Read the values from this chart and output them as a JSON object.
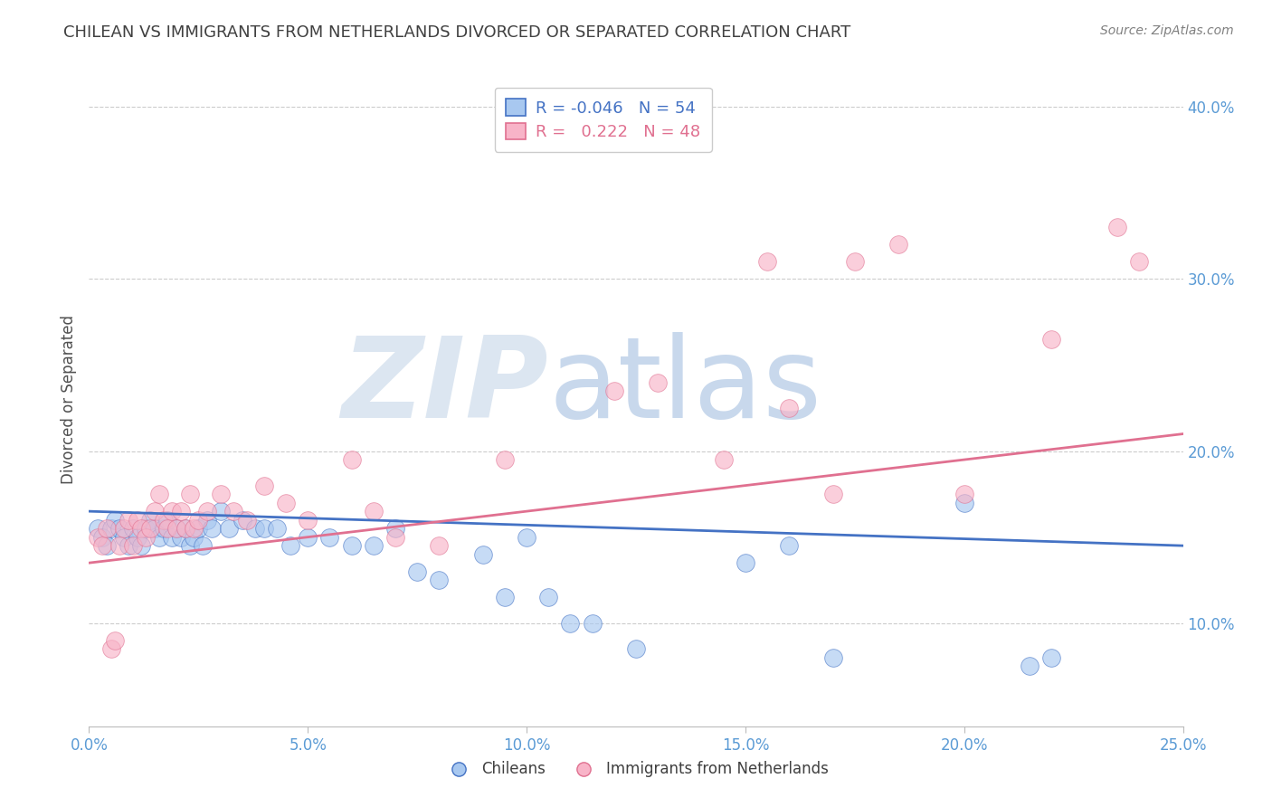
{
  "title": "CHILEAN VS IMMIGRANTS FROM NETHERLANDS DIVORCED OR SEPARATED CORRELATION CHART",
  "source_text": "Source: ZipAtlas.com",
  "ylabel": "Divorced or Separated",
  "xlim": [
    0.0,
    0.25
  ],
  "ylim": [
    0.04,
    0.42
  ],
  "xtick_labels": [
    "0.0%",
    "5.0%",
    "10.0%",
    "15.0%",
    "20.0%",
    "25.0%"
  ],
  "xtick_vals": [
    0.0,
    0.05,
    0.1,
    0.15,
    0.2,
    0.25
  ],
  "ytick_labels": [
    "10.0%",
    "20.0%",
    "30.0%",
    "40.0%"
  ],
  "ytick_vals": [
    0.1,
    0.2,
    0.3,
    0.4
  ],
  "blue_R": -0.046,
  "blue_N": 54,
  "pink_R": 0.222,
  "pink_N": 48,
  "blue_color": "#A8C8F0",
  "pink_color": "#F8B4C8",
  "blue_line_color": "#4472C4",
  "pink_line_color": "#E07090",
  "title_color": "#404040",
  "source_color": "#808080",
  "axis_label_color": "#5B9BD5",
  "watermark_color": "#DCE6F1",
  "watermark_text": "ZIPatlas",
  "background_color": "#FFFFFF",
  "blue_x": [
    0.002,
    0.003,
    0.004,
    0.005,
    0.006,
    0.007,
    0.008,
    0.009,
    0.01,
    0.011,
    0.012,
    0.013,
    0.014,
    0.015,
    0.016,
    0.017,
    0.018,
    0.019,
    0.02,
    0.021,
    0.022,
    0.023,
    0.024,
    0.025,
    0.026,
    0.027,
    0.028,
    0.03,
    0.032,
    0.035,
    0.038,
    0.04,
    0.043,
    0.046,
    0.05,
    0.055,
    0.06,
    0.065,
    0.07,
    0.075,
    0.08,
    0.09,
    0.095,
    0.1,
    0.105,
    0.11,
    0.115,
    0.125,
    0.15,
    0.16,
    0.17,
    0.2,
    0.215,
    0.22
  ],
  "blue_y": [
    0.155,
    0.15,
    0.145,
    0.155,
    0.16,
    0.155,
    0.15,
    0.145,
    0.155,
    0.15,
    0.145,
    0.155,
    0.16,
    0.155,
    0.15,
    0.155,
    0.16,
    0.15,
    0.155,
    0.15,
    0.155,
    0.145,
    0.15,
    0.155,
    0.145,
    0.16,
    0.155,
    0.165,
    0.155,
    0.16,
    0.155,
    0.155,
    0.155,
    0.145,
    0.15,
    0.15,
    0.145,
    0.145,
    0.155,
    0.13,
    0.125,
    0.14,
    0.115,
    0.15,
    0.115,
    0.1,
    0.1,
    0.085,
    0.135,
    0.145,
    0.08,
    0.17,
    0.075,
    0.08
  ],
  "pink_x": [
    0.002,
    0.003,
    0.004,
    0.005,
    0.006,
    0.007,
    0.008,
    0.009,
    0.01,
    0.011,
    0.012,
    0.013,
    0.014,
    0.015,
    0.016,
    0.017,
    0.018,
    0.019,
    0.02,
    0.021,
    0.022,
    0.023,
    0.024,
    0.025,
    0.027,
    0.03,
    0.033,
    0.036,
    0.04,
    0.045,
    0.05,
    0.06,
    0.065,
    0.07,
    0.08,
    0.095,
    0.12,
    0.13,
    0.145,
    0.155,
    0.16,
    0.17,
    0.175,
    0.185,
    0.2,
    0.22,
    0.235,
    0.24
  ],
  "pink_y": [
    0.15,
    0.145,
    0.155,
    0.085,
    0.09,
    0.145,
    0.155,
    0.16,
    0.145,
    0.16,
    0.155,
    0.15,
    0.155,
    0.165,
    0.175,
    0.16,
    0.155,
    0.165,
    0.155,
    0.165,
    0.155,
    0.175,
    0.155,
    0.16,
    0.165,
    0.175,
    0.165,
    0.16,
    0.18,
    0.17,
    0.16,
    0.195,
    0.165,
    0.15,
    0.145,
    0.195,
    0.235,
    0.24,
    0.195,
    0.31,
    0.225,
    0.175,
    0.31,
    0.32,
    0.175,
    0.265,
    0.33,
    0.31
  ]
}
